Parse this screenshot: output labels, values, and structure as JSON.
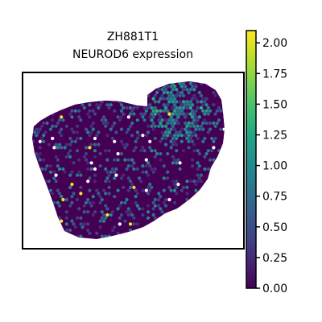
{
  "chart_data": {
    "type": "heatmap",
    "title_line1": "ZH881T1",
    "title_line2": "NEUROD6 expression",
    "colorbar": {
      "colormap": "viridis",
      "range": [
        0,
        2.1
      ],
      "ticks": [
        "0.00",
        "0.25",
        "0.50",
        "0.75",
        "1.00",
        "1.25",
        "1.50",
        "1.75",
        "2.00"
      ],
      "tick_values": [
        0,
        0.25,
        0.5,
        0.75,
        1.0,
        1.25,
        1.5,
        1.75,
        2.0
      ]
    },
    "spot_value_distribution": {
      "background_value": 0.0,
      "typical_value_range": [
        0.5,
        1.0
      ],
      "max_value": 2.07,
      "hotspot_region": "upper-right"
    },
    "colors": {
      "background_spot": "#440154",
      "frame": "#000000"
    }
  }
}
